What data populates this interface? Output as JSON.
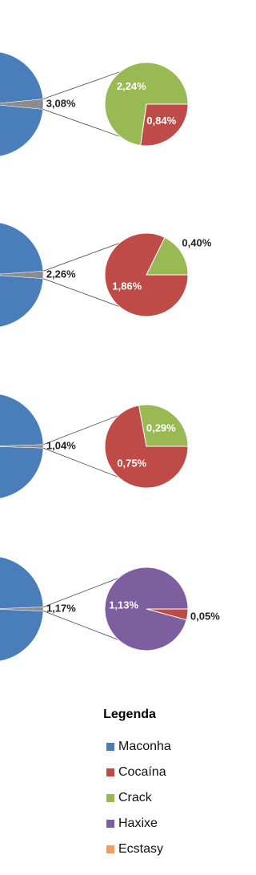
{
  "chart_data": {
    "type": "pie-of-pie",
    "legend_title": "Legenda",
    "other_color": "#8c8c8c",
    "series": [
      {
        "name": "Maconha",
        "color": "#4a7ebb"
      },
      {
        "name": "Cocaína",
        "color": "#be4b48"
      },
      {
        "name": "Crack",
        "color": "#98b954"
      },
      {
        "name": "Haxixe",
        "color": "#7d5fa0"
      },
      {
        "name": "Ecstasy",
        "color": "#f59d56"
      }
    ],
    "charts": [
      {
        "main_value": 96.92,
        "other_value": 3.08,
        "other_label": "3,08%",
        "detail_values": [
          null,
          0.84,
          2.24,
          null,
          null
        ],
        "detail_labels": [
          null,
          "0,84%",
          "2,24%",
          null,
          null
        ]
      },
      {
        "main_value": 97.74,
        "other_value": 2.26,
        "other_label": "2,26%",
        "detail_values": [
          null,
          1.86,
          0.4,
          null,
          null
        ],
        "detail_labels": [
          null,
          "1,86%",
          "0,40%",
          null,
          null
        ]
      },
      {
        "main_value": 98.96,
        "other_value": 1.04,
        "other_label": "1,04%",
        "detail_values": [
          null,
          0.75,
          0.29,
          null,
          null
        ],
        "detail_labels": [
          null,
          "0,75%",
          "0,29%",
          null,
          null
        ]
      },
      {
        "main_value": 98.83,
        "other_value": 1.17,
        "other_label": "1,17%",
        "detail_values": [
          null,
          0.05,
          null,
          1.13,
          null
        ],
        "detail_labels": [
          null,
          "0,05%",
          null,
          "1,13%",
          null
        ]
      }
    ]
  }
}
